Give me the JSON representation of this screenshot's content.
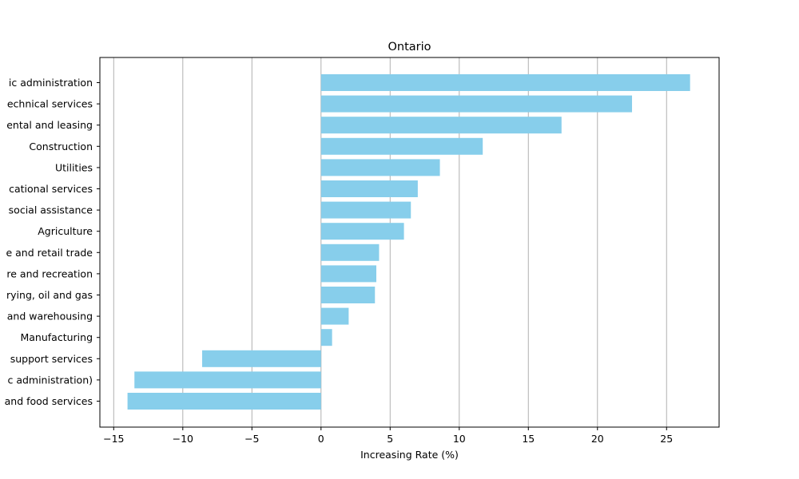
{
  "chart_data": {
    "type": "bar",
    "orientation": "horizontal",
    "title": "Ontario",
    "xlabel": "Increasing Rate (%)",
    "ylabel": "",
    "xlim": [
      -16,
      28.8
    ],
    "xticks": [
      -15,
      -10,
      -5,
      0,
      5,
      10,
      15,
      20,
      25
    ],
    "xtick_labels": [
      "−15",
      "−10",
      "−5",
      "0",
      "5",
      "10",
      "15",
      "20",
      "25"
    ],
    "grid": "x",
    "bar_color": "#87CEEB",
    "categories": [
      "ic administration",
      "echnical services",
      "ental and leasing",
      "Construction",
      "Utilities",
      "cational services",
      "social assistance",
      "Agriculture",
      "e and retail trade",
      "re and recreation",
      "rying, oil and gas",
      "and warehousing",
      "Manufacturing",
      "support services",
      "c administration)",
      "and food services"
    ],
    "values": [
      26.7,
      22.5,
      17.4,
      11.7,
      8.6,
      7.0,
      6.5,
      6.0,
      4.2,
      4.0,
      3.9,
      2.0,
      0.8,
      -8.6,
      -13.5,
      -14.0
    ]
  }
}
